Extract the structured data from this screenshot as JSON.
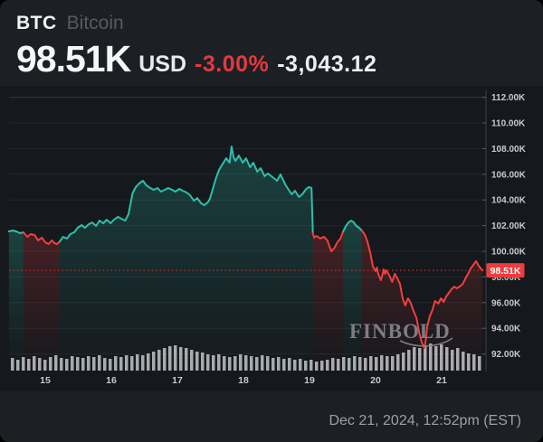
{
  "header": {
    "symbol": "BTC",
    "name": "Bitcoin",
    "price": "98.51K",
    "currency": "USD",
    "change_pct": "-3.00%",
    "change_abs": "-3,043.12"
  },
  "watermark": "FINBOLD",
  "footer": {
    "timestamp": "Dec 21, 2024, 12:52pm (EST)"
  },
  "colors": {
    "up": "#2dbfab",
    "down": "#f0403e",
    "badge": "#ef3b3f",
    "volume": "#c9ccce",
    "grid": "#23272c",
    "grid_top": "#31363c",
    "axis": "#3c4147"
  },
  "chart_data": {
    "type": "line",
    "title": "BTC/USD price with volume, Dec 14-21 2024",
    "x_axis": {
      "labels": [
        "15",
        "16",
        "17",
        "18",
        "19",
        "20",
        "21"
      ],
      "range_days": [
        14.45,
        21.62
      ],
      "grid": false
    },
    "y_axis": {
      "ticks": [
        "112.00K",
        "110.00K",
        "108.00K",
        "106.00K",
        "104.00K",
        "102.00K",
        "100.00K",
        "98.00K",
        "96.00K",
        "94.00K",
        "92.00K"
      ],
      "range": [
        90.7,
        112.5
      ],
      "position": "right",
      "grid": true
    },
    "current_price": 98.51,
    "current_price_label": "98.51K",
    "legend": "none",
    "segments": [
      {
        "trend": "up",
        "points": [
          [
            14.45,
            101.55
          ],
          [
            14.51,
            101.62
          ],
          [
            14.56,
            101.55
          ],
          [
            14.62,
            101.41
          ],
          [
            14.67,
            101.48
          ]
        ]
      },
      {
        "trend": "down",
        "points": [
          [
            14.67,
            101.48
          ],
          [
            14.73,
            101.13
          ],
          [
            14.78,
            101.34
          ],
          [
            14.84,
            101.27
          ],
          [
            14.89,
            100.85
          ],
          [
            14.95,
            101.06
          ],
          [
            15.0,
            100.7
          ],
          [
            15.05,
            100.56
          ],
          [
            15.1,
            100.85
          ],
          [
            15.14,
            100.63
          ],
          [
            15.18,
            100.56
          ],
          [
            15.22,
            100.77
          ]
        ]
      },
      {
        "trend": "up",
        "points": [
          [
            15.22,
            100.77
          ],
          [
            15.27,
            101.13
          ],
          [
            15.33,
            100.99
          ],
          [
            15.38,
            101.34
          ],
          [
            15.44,
            101.48
          ],
          [
            15.49,
            101.83
          ],
          [
            15.55,
            102.04
          ],
          [
            15.6,
            101.83
          ],
          [
            15.66,
            102.11
          ],
          [
            15.71,
            102.25
          ],
          [
            15.77,
            101.97
          ],
          [
            15.82,
            102.39
          ],
          [
            15.88,
            102.18
          ],
          [
            15.93,
            102.46
          ],
          [
            15.99,
            102.18
          ],
          [
            16.04,
            102.46
          ],
          [
            16.1,
            102.68
          ],
          [
            16.15,
            102.54
          ],
          [
            16.21,
            102.39
          ],
          [
            16.26,
            102.89
          ],
          [
            16.32,
            104.51
          ],
          [
            16.37,
            105.0
          ],
          [
            16.42,
            105.28
          ],
          [
            16.48,
            105.49
          ],
          [
            16.53,
            105.14
          ],
          [
            16.59,
            104.93
          ],
          [
            16.64,
            104.79
          ],
          [
            16.7,
            104.93
          ],
          [
            16.75,
            104.65
          ],
          [
            16.81,
            104.79
          ],
          [
            16.86,
            104.93
          ],
          [
            16.92,
            104.79
          ],
          [
            16.97,
            104.65
          ],
          [
            17.03,
            104.86
          ],
          [
            17.08,
            104.72
          ],
          [
            17.14,
            104.58
          ],
          [
            17.19,
            104.37
          ],
          [
            17.25,
            103.94
          ],
          [
            17.3,
            104.15
          ],
          [
            17.36,
            103.73
          ],
          [
            17.41,
            103.59
          ],
          [
            17.47,
            103.87
          ],
          [
            17.49,
            104.08
          ],
          [
            17.52,
            104.58
          ],
          [
            17.58,
            105.63
          ],
          [
            17.63,
            106.34
          ],
          [
            17.68,
            106.76
          ],
          [
            17.74,
            107.25
          ],
          [
            17.79,
            106.9
          ],
          [
            17.82,
            108.17
          ],
          [
            17.85,
            107.32
          ],
          [
            17.88,
            107.04
          ],
          [
            17.93,
            107.46
          ],
          [
            17.99,
            106.9
          ],
          [
            18.04,
            107.25
          ],
          [
            18.1,
            106.55
          ],
          [
            18.15,
            106.9
          ],
          [
            18.21,
            106.2
          ],
          [
            18.26,
            106.48
          ],
          [
            18.32,
            105.85
          ],
          [
            18.37,
            106.06
          ],
          [
            18.42,
            105.85
          ],
          [
            18.51,
            105.49
          ],
          [
            18.56,
            105.99
          ],
          [
            18.64,
            105.14
          ],
          [
            18.73,
            104.44
          ],
          [
            18.78,
            104.72
          ],
          [
            18.84,
            104.23
          ],
          [
            18.89,
            104.44
          ],
          [
            18.95,
            104.86
          ],
          [
            18.99,
            105.0
          ],
          [
            19.03,
            104.93
          ],
          [
            19.05,
            101.41
          ]
        ]
      },
      {
        "trend": "down",
        "points": [
          [
            19.05,
            101.41
          ],
          [
            19.07,
            101.06
          ],
          [
            19.11,
            101.2
          ],
          [
            19.16,
            100.99
          ],
          [
            19.22,
            101.13
          ],
          [
            19.27,
            100.85
          ],
          [
            19.33,
            100.0
          ],
          [
            19.38,
            100.28
          ],
          [
            19.42,
            100.7
          ],
          [
            19.47,
            100.99
          ],
          [
            19.51,
            101.55
          ]
        ]
      },
      {
        "trend": "up",
        "points": [
          [
            19.51,
            101.55
          ],
          [
            19.55,
            101.97
          ],
          [
            19.59,
            102.25
          ],
          [
            19.63,
            102.39
          ],
          [
            19.67,
            102.25
          ],
          [
            19.71,
            101.97
          ],
          [
            19.75,
            101.83
          ],
          [
            19.79,
            101.62
          ]
        ]
      },
      {
        "trend": "down",
        "points": [
          [
            19.79,
            101.62
          ],
          [
            19.84,
            101.27
          ],
          [
            19.88,
            100.7
          ],
          [
            19.92,
            99.86
          ],
          [
            19.96,
            98.8
          ],
          [
            20.0,
            98.45
          ],
          [
            20.02,
            98.73
          ],
          [
            20.04,
            98.24
          ],
          [
            20.08,
            97.75
          ],
          [
            20.1,
            98.1
          ],
          [
            20.12,
            98.59
          ],
          [
            20.14,
            98.24
          ],
          [
            20.16,
            98.52
          ],
          [
            20.21,
            98.1
          ],
          [
            20.25,
            97.61
          ],
          [
            20.27,
            97.89
          ],
          [
            20.29,
            98.24
          ],
          [
            20.33,
            97.89
          ],
          [
            20.37,
            97.46
          ],
          [
            20.41,
            96.34
          ],
          [
            20.45,
            95.77
          ],
          [
            20.47,
            96.06
          ],
          [
            20.49,
            96.34
          ],
          [
            20.53,
            95.99
          ],
          [
            20.58,
            95.28
          ],
          [
            20.62,
            94.79
          ],
          [
            20.66,
            93.66
          ],
          [
            20.7,
            92.89
          ],
          [
            20.74,
            92.46
          ],
          [
            20.76,
            93.1
          ],
          [
            20.78,
            94.08
          ],
          [
            20.82,
            94.93
          ],
          [
            20.86,
            95.42
          ],
          [
            20.9,
            96.13
          ],
          [
            20.95,
            95.92
          ],
          [
            20.99,
            96.34
          ],
          [
            21.03,
            96.06
          ],
          [
            21.07,
            96.48
          ],
          [
            21.11,
            96.76
          ],
          [
            21.15,
            97.04
          ],
          [
            21.19,
            97.25
          ],
          [
            21.23,
            97.11
          ],
          [
            21.27,
            97.25
          ],
          [
            21.32,
            97.46
          ],
          [
            21.36,
            97.89
          ],
          [
            21.4,
            98.24
          ],
          [
            21.44,
            98.66
          ],
          [
            21.48,
            98.94
          ],
          [
            21.52,
            99.23
          ],
          [
            21.56,
            98.87
          ],
          [
            21.59,
            98.66
          ],
          [
            21.62,
            98.51
          ]
        ]
      }
    ],
    "volume_bars": [
      14,
      12,
      15,
      13,
      16,
      14,
      12,
      15,
      17,
      14,
      13,
      16,
      15,
      14,
      16,
      15,
      17,
      14,
      13,
      16,
      15,
      17,
      16,
      18,
      17,
      19,
      21,
      23,
      25,
      27,
      28,
      26,
      25,
      23,
      21,
      20,
      18,
      17,
      18,
      16,
      15,
      16,
      18,
      17,
      16,
      15,
      17,
      16,
      14,
      15,
      13,
      14,
      12,
      13,
      11,
      12,
      10,
      11,
      12,
      14,
      13,
      15,
      14,
      16,
      15,
      14,
      16,
      15,
      17,
      16,
      16,
      18,
      20,
      23,
      26,
      25,
      28,
      30,
      27,
      29,
      26,
      23,
      25,
      21,
      19,
      18,
      16
    ]
  }
}
